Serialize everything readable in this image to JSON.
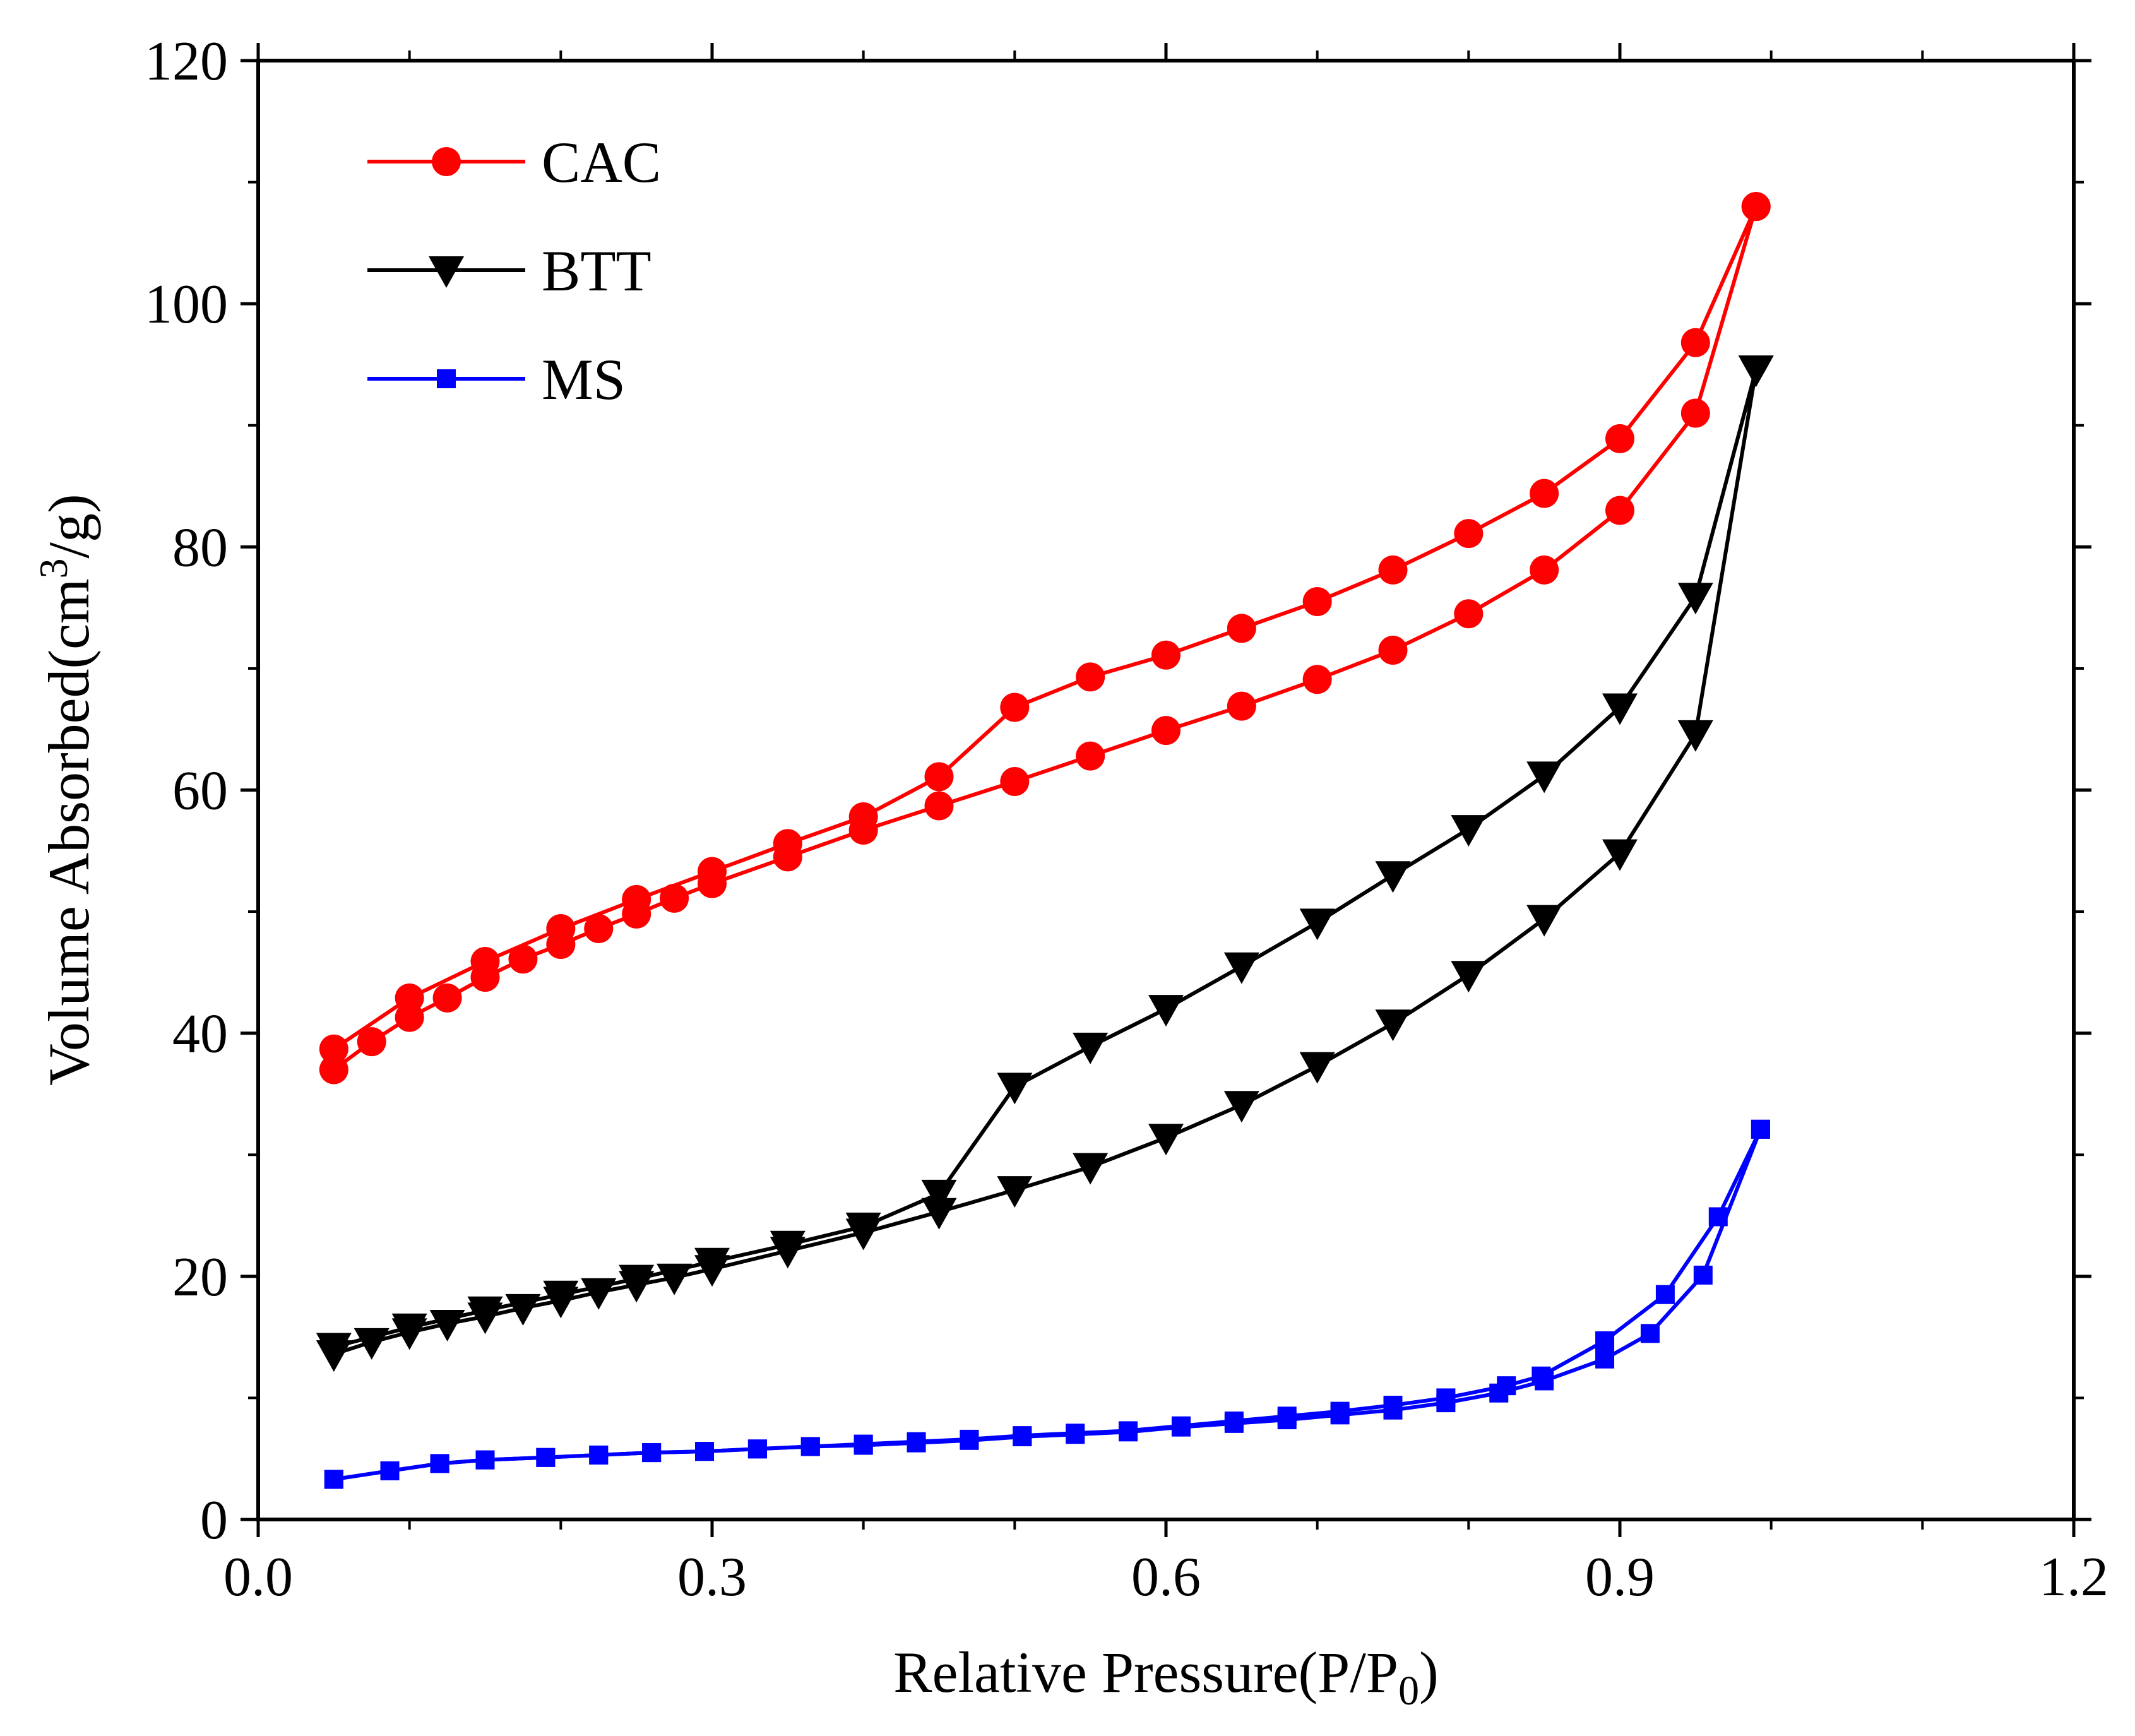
{
  "chart_data": {
    "type": "line",
    "title": "",
    "xlabel": "Relative Pressure(P/P",
    "xlabel_sub": "0",
    "xlabel_end": ")",
    "ylabel": "Volume Absorbed(cm",
    "ylabel_sup": "3",
    "ylabel_end": "/g)",
    "xlim": [
      0.0,
      1.2
    ],
    "ylim": [
      0,
      120
    ],
    "xticks": [
      0.0,
      0.3,
      0.6,
      0.9,
      1.2
    ],
    "xtick_labels": [
      "0.0",
      "0.3",
      "0.6",
      "0.9",
      "1.2"
    ],
    "yticks": [
      0,
      20,
      40,
      60,
      80,
      100,
      120
    ],
    "ytick_labels": [
      "0",
      "20",
      "40",
      "60",
      "80",
      "100",
      "120"
    ],
    "grid": false,
    "legend_position": "top-left",
    "series": [
      {
        "name": "CAC",
        "color": "#ff0000",
        "marker": "circle",
        "adsorption": [
          [
            0.05,
            37.0
          ],
          [
            0.075,
            39.3
          ],
          [
            0.1,
            41.3
          ],
          [
            0.125,
            42.9
          ],
          [
            0.15,
            44.6
          ],
          [
            0.175,
            46.1
          ],
          [
            0.2,
            47.3
          ],
          [
            0.225,
            48.6
          ],
          [
            0.25,
            49.8
          ],
          [
            0.275,
            51.1
          ],
          [
            0.3,
            52.3
          ],
          [
            0.35,
            54.5
          ],
          [
            0.4,
            56.7
          ],
          [
            0.45,
            58.7
          ],
          [
            0.5,
            60.7
          ],
          [
            0.55,
            62.8
          ],
          [
            0.6,
            64.9
          ],
          [
            0.65,
            66.9
          ],
          [
            0.7,
            69.1
          ],
          [
            0.75,
            71.5
          ],
          [
            0.8,
            74.5
          ],
          [
            0.85,
            78.1
          ],
          [
            0.9,
            83.0
          ],
          [
            0.95,
            91.0
          ],
          [
            0.99,
            108.0
          ]
        ],
        "desorption": [
          [
            0.99,
            108.0
          ],
          [
            0.95,
            96.8
          ],
          [
            0.9,
            88.9
          ],
          [
            0.85,
            84.4
          ],
          [
            0.8,
            81.1
          ],
          [
            0.75,
            78.1
          ],
          [
            0.7,
            75.5
          ],
          [
            0.65,
            73.3
          ],
          [
            0.6,
            71.1
          ],
          [
            0.55,
            69.3
          ],
          [
            0.5,
            66.8
          ],
          [
            0.45,
            61.1
          ],
          [
            0.4,
            57.8
          ],
          [
            0.35,
            55.6
          ],
          [
            0.3,
            53.3
          ],
          [
            0.25,
            51.0
          ],
          [
            0.2,
            48.6
          ],
          [
            0.15,
            45.9
          ],
          [
            0.1,
            42.9
          ],
          [
            0.05,
            38.7
          ]
        ]
      },
      {
        "name": "BTT",
        "color": "#000000",
        "marker": "triangle-down",
        "adsorption": [
          [
            0.05,
            13.6
          ],
          [
            0.075,
            14.6
          ],
          [
            0.1,
            15.4
          ],
          [
            0.125,
            16.1
          ],
          [
            0.15,
            16.7
          ],
          [
            0.175,
            17.4
          ],
          [
            0.2,
            18.0
          ],
          [
            0.225,
            18.7
          ],
          [
            0.25,
            19.3
          ],
          [
            0.275,
            19.9
          ],
          [
            0.3,
            20.6
          ],
          [
            0.35,
            22.1
          ],
          [
            0.4,
            23.6
          ],
          [
            0.45,
            25.3
          ],
          [
            0.5,
            27.1
          ],
          [
            0.55,
            29.0
          ],
          [
            0.6,
            31.4
          ],
          [
            0.65,
            34.1
          ],
          [
            0.7,
            37.3
          ],
          [
            0.75,
            40.8
          ],
          [
            0.8,
            44.8
          ],
          [
            0.85,
            49.4
          ],
          [
            0.9,
            54.8
          ],
          [
            0.95,
            64.6
          ],
          [
            0.99,
            94.6
          ]
        ],
        "desorption": [
          [
            0.99,
            94.6
          ],
          [
            0.95,
            75.9
          ],
          [
            0.9,
            66.8
          ],
          [
            0.85,
            61.2
          ],
          [
            0.8,
            56.8
          ],
          [
            0.75,
            53.0
          ],
          [
            0.7,
            49.1
          ],
          [
            0.65,
            45.5
          ],
          [
            0.6,
            42.0
          ],
          [
            0.55,
            38.9
          ],
          [
            0.5,
            35.6
          ],
          [
            0.45,
            26.8
          ],
          [
            0.4,
            24.1
          ],
          [
            0.35,
            22.6
          ],
          [
            0.3,
            21.2
          ],
          [
            0.25,
            19.8
          ],
          [
            0.2,
            18.5
          ],
          [
            0.15,
            17.2
          ],
          [
            0.1,
            15.8
          ],
          [
            0.05,
            14.2
          ]
        ]
      },
      {
        "name": "MS",
        "color": "#0000ff",
        "marker": "square",
        "adsorption": [
          [
            0.05,
            3.3
          ],
          [
            0.087,
            4.0
          ],
          [
            0.12,
            4.6
          ],
          [
            0.15,
            4.9
          ],
          [
            0.19,
            5.1
          ],
          [
            0.225,
            5.3
          ],
          [
            0.26,
            5.5
          ],
          [
            0.295,
            5.6
          ],
          [
            0.33,
            5.8
          ],
          [
            0.365,
            6.0
          ],
          [
            0.4,
            6.1
          ],
          [
            0.435,
            6.3
          ],
          [
            0.47,
            6.5
          ],
          [
            0.505,
            6.8
          ],
          [
            0.54,
            7.0
          ],
          [
            0.575,
            7.2
          ],
          [
            0.61,
            7.6
          ],
          [
            0.645,
            7.9
          ],
          [
            0.68,
            8.2
          ],
          [
            0.715,
            8.6
          ],
          [
            0.75,
            9.0
          ],
          [
            0.785,
            9.6
          ],
          [
            0.82,
            10.4
          ],
          [
            0.85,
            11.4
          ],
          [
            0.89,
            13.2
          ],
          [
            0.92,
            15.3
          ],
          [
            0.955,
            20.1
          ],
          [
            0.993,
            32.1
          ]
        ],
        "desorption": [
          [
            0.993,
            32.1
          ],
          [
            0.965,
            24.9
          ],
          [
            0.93,
            18.5
          ],
          [
            0.89,
            14.7
          ],
          [
            0.848,
            11.8
          ],
          [
            0.825,
            11.0
          ],
          [
            0.785,
            10.0
          ],
          [
            0.75,
            9.4
          ],
          [
            0.715,
            8.9
          ],
          [
            0.68,
            8.5
          ],
          [
            0.645,
            8.1
          ],
          [
            0.61,
            7.7
          ],
          [
            0.575,
            7.3
          ],
          [
            0.54,
            7.1
          ],
          [
            0.505,
            6.9
          ],
          [
            0.47,
            6.6
          ],
          [
            0.435,
            6.4
          ],
          [
            0.4,
            6.2
          ],
          [
            0.365,
            6.0
          ],
          [
            0.33,
            5.8
          ],
          [
            0.295,
            5.6
          ],
          [
            0.26,
            5.5
          ],
          [
            0.225,
            5.3
          ],
          [
            0.19,
            5.1
          ],
          [
            0.15,
            4.9
          ],
          [
            0.12,
            4.6
          ],
          [
            0.087,
            4.0
          ],
          [
            0.05,
            3.3
          ]
        ]
      }
    ]
  }
}
